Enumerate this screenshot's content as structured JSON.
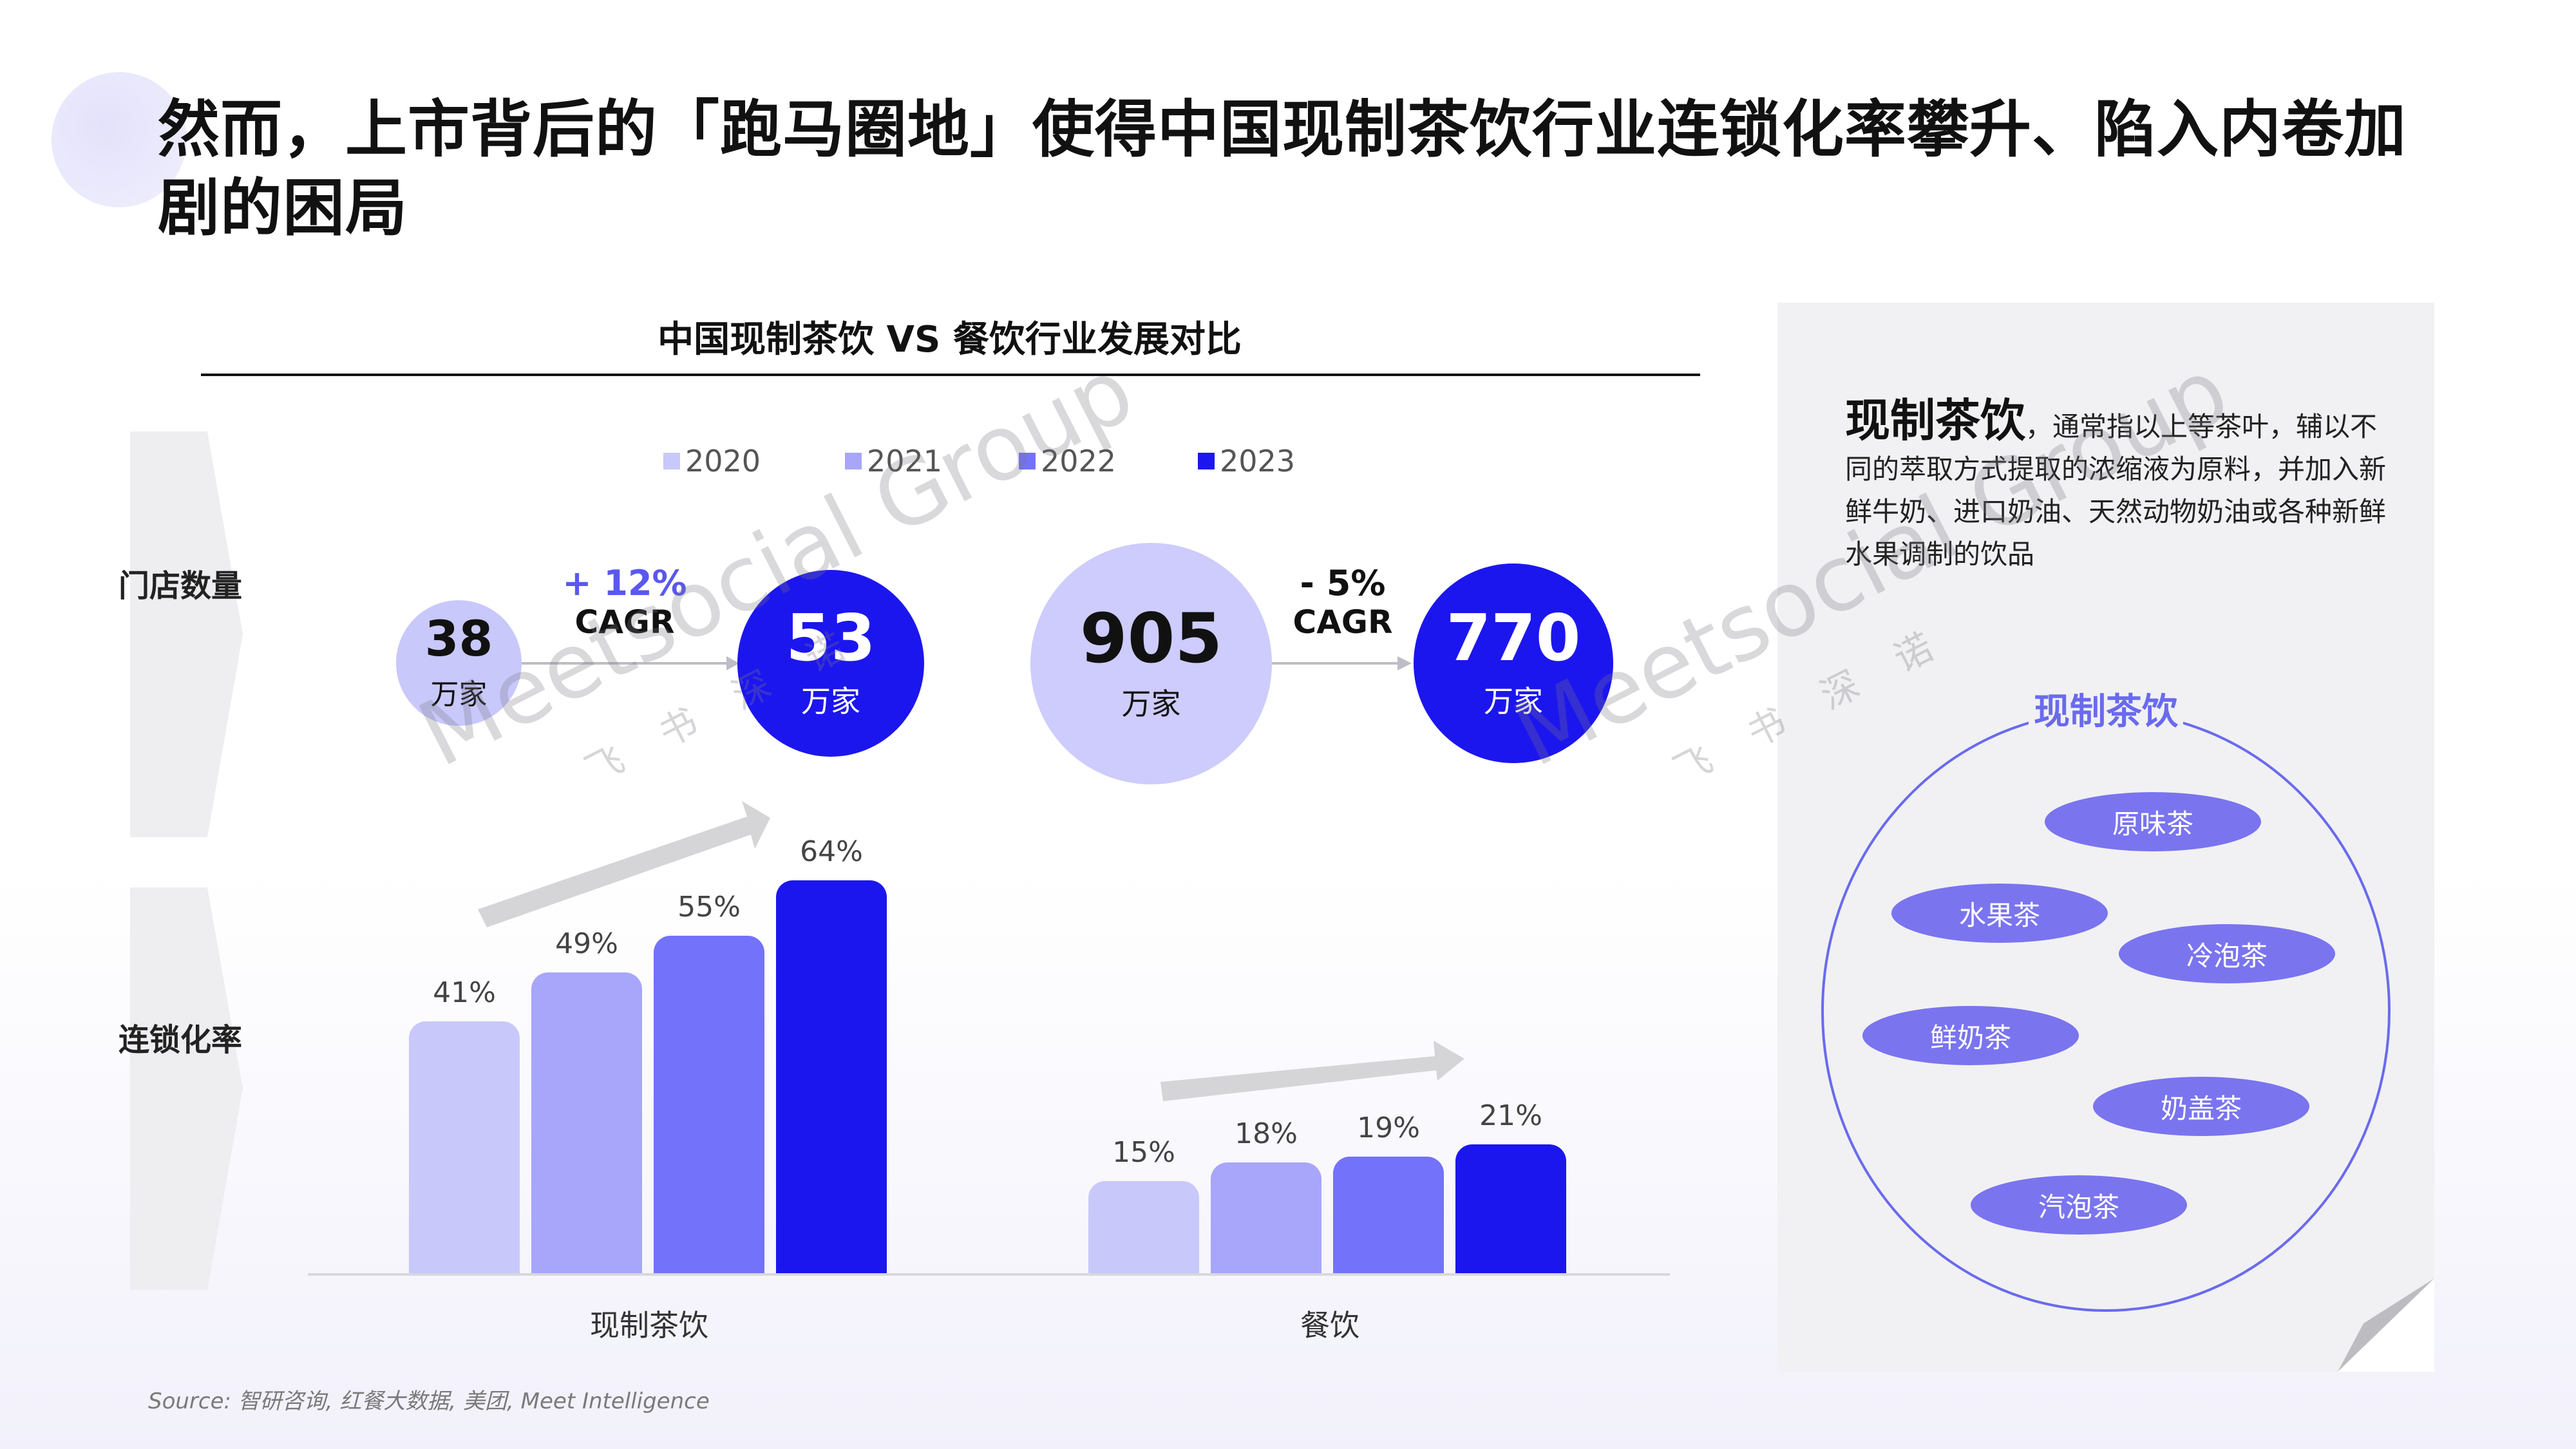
{
  "page": {
    "title": "然而，上市背后的「跑马圈地」使得中国现制茶饮行业连锁化率攀升、陷入内卷加剧的困局",
    "source": "Source: 智研咨询, 红餐大数据, 美团, Meet Intelligence",
    "watermark": {
      "brand": "Meetsocial Group",
      "sub": "飞书深诺"
    }
  },
  "chart_data": {
    "title": "中国现制茶饮 VS 餐饮行业发展对比",
    "type": "bar",
    "legend": [
      "2020",
      "2021",
      "2022",
      "2023"
    ],
    "legend_position": "top",
    "colors": [
      "#c9c8fb",
      "#a8a6fb",
      "#7372fa",
      "#1c16ee"
    ],
    "row_labels": {
      "stores": "门店数量",
      "chain_rate": "连锁化率"
    },
    "store_counts": [
      {
        "category": "现制茶饮",
        "from": {
          "value": "38",
          "unit": "万家"
        },
        "to": {
          "value": "53",
          "unit": "万家"
        },
        "change": "+ 12%",
        "change_label": "CAGR"
      },
      {
        "category": "餐饮",
        "from": {
          "value": "905",
          "unit": "万家"
        },
        "to": {
          "value": "770",
          "unit": "万家"
        },
        "change": "- 5%",
        "change_label": "CAGR"
      }
    ],
    "categories": [
      "现制茶饮",
      "餐饮"
    ],
    "series": [
      {
        "name": "2020",
        "values": [
          41,
          15
        ]
      },
      {
        "name": "2021",
        "values": [
          49,
          18
        ]
      },
      {
        "name": "2022",
        "values": [
          55,
          19
        ]
      },
      {
        "name": "2023",
        "values": [
          64,
          21
        ]
      }
    ],
    "value_suffix": "%",
    "ylim": [
      0,
      64
    ]
  },
  "panel": {
    "term": "现制茶饮",
    "definition": "，通常指以上等茶叶，辅以不同的萃取方式提取的浓缩液为原料，并加入新鲜牛奶、进口奶油、天然动物奶油或各种新鲜水果调制的饮品",
    "circle_title": "现制茶饮",
    "types": [
      "原味茶",
      "水果茶",
      "冷泡茶",
      "鲜奶茶",
      "奶盖茶",
      "汽泡茶"
    ],
    "accent": "#6a6aee"
  }
}
